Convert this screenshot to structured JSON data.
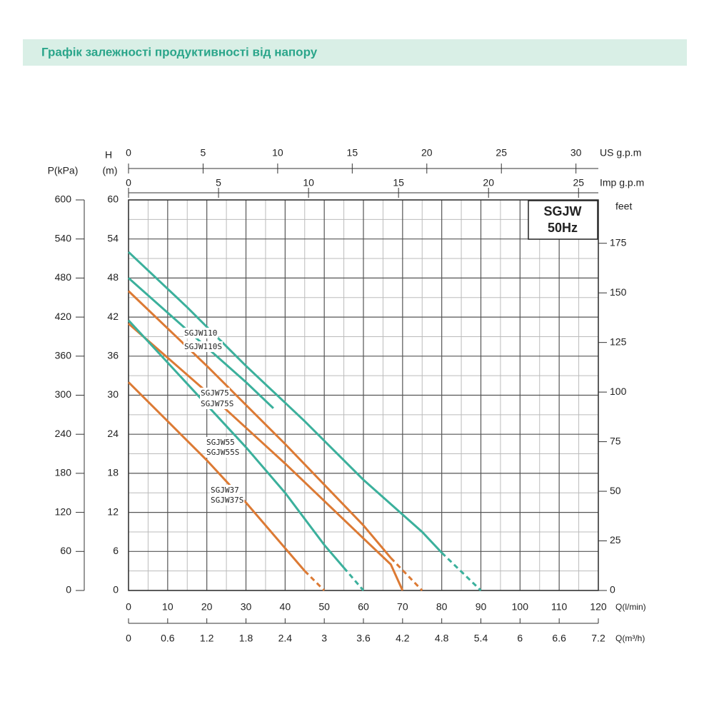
{
  "chart_data": {
    "type": "line",
    "title": "Графік залежності продуктивності від напору",
    "box_lines": [
      "SGJW",
      "50Hz"
    ],
    "xlabel": "Q(l/min)",
    "ylabel": "H",
    "yunit": "(m)",
    "xlim": [
      0,
      120
    ],
    "xticks": [
      0,
      10,
      20,
      30,
      40,
      50,
      60,
      70,
      80,
      90,
      100,
      110,
      120
    ],
    "ylim": [
      0,
      60
    ],
    "yticks": [
      0,
      6,
      12,
      18,
      24,
      30,
      36,
      42,
      48,
      54,
      60
    ],
    "grid": true,
    "extra_axes": [
      {
        "label": "Q(m³/h)",
        "side": "bottom",
        "lim": [
          0,
          7.2
        ],
        "ticks": [
          0,
          0.6,
          1.2,
          1.8,
          2.4,
          3,
          3.6,
          4.2,
          4.8,
          5.4,
          6,
          6.6,
          7.2
        ]
      },
      {
        "label": "US g.p.m",
        "side": "top",
        "lim": [
          0,
          31.5
        ],
        "ticks": [
          0,
          5,
          10,
          15,
          20,
          25,
          30
        ]
      },
      {
        "label": "Imp g.p.m",
        "side": "top",
        "lim": [
          0,
          26.1
        ],
        "ticks": [
          0,
          5,
          10,
          15,
          20,
          25
        ]
      },
      {
        "label": "P(kPa)",
        "side": "left",
        "lim": [
          0,
          600
        ],
        "ticks": [
          0,
          60,
          120,
          180,
          240,
          300,
          360,
          420,
          480,
          540,
          600
        ]
      },
      {
        "label": "feet",
        "side": "right",
        "lim": [
          0,
          196.85
        ],
        "ticks": [
          0,
          25,
          50,
          75,
          100,
          125,
          150,
          175
        ]
      }
    ],
    "series": [
      {
        "name": "SGJW110",
        "color": "#3bb09c",
        "dash_tail": true,
        "x": [
          0,
          15,
          30,
          45,
          60,
          75,
          80,
          90
        ],
        "values": [
          52,
          43.5,
          34.5,
          26,
          17,
          9,
          5.8,
          0
        ]
      },
      {
        "name": "SGJW110S",
        "color": "#3bb09c",
        "dash_tail": false,
        "x": [
          0,
          15,
          30,
          37
        ],
        "values": [
          48,
          40,
          32,
          28
        ]
      },
      {
        "name": "SGJW75",
        "color": "#dc7a34",
        "dash_tail": true,
        "x": [
          0,
          20,
          40,
          60,
          67,
          75
        ],
        "values": [
          46,
          34.5,
          22.5,
          10,
          5,
          0
        ]
      },
      {
        "name": "SGJW75S",
        "color": "#dc7a34",
        "dash_tail": false,
        "x": [
          0,
          20,
          40,
          60,
          67,
          70
        ],
        "values": [
          41,
          30.5,
          19.5,
          8,
          4,
          0
        ]
      },
      {
        "name": "SGJW55",
        "alt_name": "SGJW55S",
        "color": "#3bb09c",
        "dash_tail": true,
        "x": [
          0,
          10,
          20,
          30,
          40,
          50,
          55,
          60
        ],
        "values": [
          41.5,
          35,
          28.5,
          22,
          15,
          7,
          3.5,
          0
        ]
      },
      {
        "name": "SGJW37",
        "alt_name": "SGJW37S",
        "color": "#dc7a34",
        "dash_tail": true,
        "x": [
          0,
          10,
          20,
          30,
          40,
          45,
          50
        ],
        "values": [
          32,
          26,
          20,
          13.5,
          6.5,
          3,
          0
        ]
      }
    ]
  }
}
